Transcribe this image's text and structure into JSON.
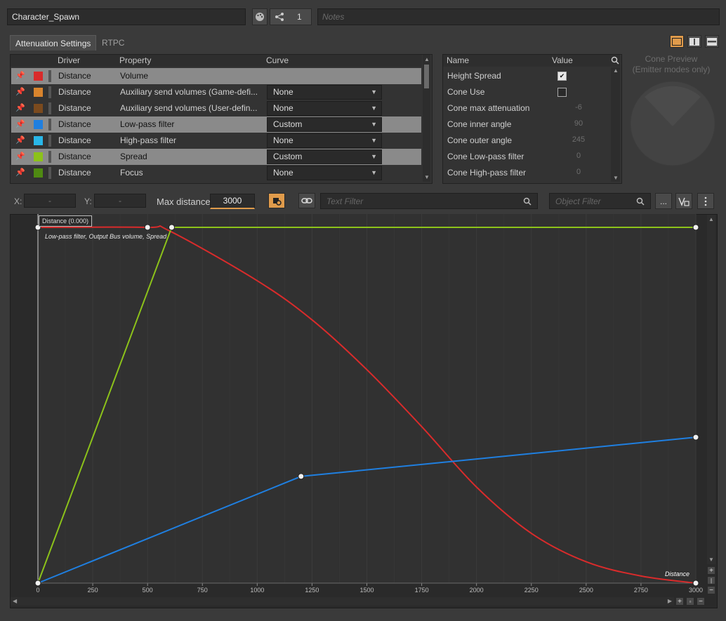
{
  "object_name": "Character_Spawn",
  "share_count": "1",
  "notes_placeholder": "Notes",
  "tabs": [
    "Attenuation Settings",
    "RTPC"
  ],
  "curves_table": {
    "headers": [
      "Driver",
      "Property",
      "Curve"
    ],
    "rows": [
      {
        "driver": "Distance",
        "property": "Volume",
        "curve": "",
        "color": "#d92b2b",
        "selected": true
      },
      {
        "driver": "Distance",
        "property": "Auxiliary send volumes (Game-defi...",
        "curve": "None",
        "color": "#d8842d",
        "selected": false
      },
      {
        "driver": "Distance",
        "property": "Auxiliary send volumes (User-defin...",
        "curve": "None",
        "color": "#7b4a1e",
        "selected": false
      },
      {
        "driver": "Distance",
        "property": "Low-pass filter",
        "curve": "Custom",
        "color": "#1f7fe0",
        "selected": true
      },
      {
        "driver": "Distance",
        "property": "High-pass filter",
        "curve": "None",
        "color": "#29b7e8",
        "selected": false
      },
      {
        "driver": "Distance",
        "property": "Spread",
        "curve": "Custom",
        "color": "#8cc21a",
        "selected": true
      },
      {
        "driver": "Distance",
        "property": "Focus",
        "curve": "None",
        "color": "#4f8a12",
        "selected": false
      }
    ]
  },
  "props_table": {
    "headers": [
      "Name",
      "Value"
    ],
    "rows": [
      {
        "name": "Height Spread",
        "value": "checked"
      },
      {
        "name": "Cone Use",
        "value": "unchecked"
      },
      {
        "name": "Cone max attenuation",
        "value": "-6"
      },
      {
        "name": "Cone inner angle",
        "value": "90"
      },
      {
        "name": "Cone outer angle",
        "value": "245"
      },
      {
        "name": "Cone Low-pass filter",
        "value": "0"
      },
      {
        "name": "Cone High-pass filter",
        "value": "0"
      }
    ]
  },
  "cone_preview": {
    "line1": "Cone Preview",
    "line2": "(Emitter modes only)"
  },
  "graph_toolbar": {
    "x_label": "X:",
    "x_value": "-",
    "y_label": "Y:",
    "y_value": "-",
    "max_distance_label": "Max distance",
    "max_distance_value": "3000",
    "text_filter_placeholder": "Text Filter",
    "object_filter_placeholder": "Object Filter",
    "more_label": "..."
  },
  "graph": {
    "cursor_label": "Distance (0.000)",
    "legend_text": "Low-pass filter, Output Bus volume, Spread",
    "axis_name": "Distance",
    "x_ticks": [
      "0",
      "250",
      "500",
      "750",
      "1000",
      "1250",
      "1500",
      "1750",
      "2000",
      "2250",
      "2500",
      "2750",
      "3000"
    ]
  },
  "chart_data": {
    "type": "line",
    "xlabel": "Distance",
    "xlim": [
      0,
      3000
    ],
    "ylim": [
      0,
      1
    ],
    "x_ticks": [
      0,
      250,
      500,
      750,
      1000,
      1250,
      1500,
      1750,
      2000,
      2250,
      2500,
      2750,
      3000
    ],
    "series": [
      {
        "name": "Volume",
        "color": "#d92b2b",
        "shape": "smooth",
        "points": [
          [
            0,
            1
          ],
          [
            500,
            1
          ],
          [
            600,
            0.99
          ],
          [
            1000,
            0.85
          ],
          [
            1250,
            0.74
          ],
          [
            1500,
            0.6
          ],
          [
            1750,
            0.44
          ],
          [
            2000,
            0.27
          ],
          [
            2250,
            0.14
          ],
          [
            2500,
            0.06
          ],
          [
            2750,
            0.02
          ],
          [
            3000,
            0
          ]
        ],
        "controls": [
          [
            0,
            1
          ],
          [
            500,
            1
          ],
          [
            3000,
            0
          ]
        ]
      },
      {
        "name": "Low-pass filter",
        "color": "#1f7fe0",
        "shape": "linear",
        "points": [
          [
            0,
            0
          ],
          [
            1200,
            0.3
          ],
          [
            3000,
            0.41
          ]
        ],
        "controls": [
          [
            0,
            0
          ],
          [
            1200,
            0.3
          ],
          [
            3000,
            0.41
          ]
        ]
      },
      {
        "name": "Spread",
        "color": "#8cc21a",
        "shape": "linear",
        "points": [
          [
            0,
            0
          ],
          [
            610,
            1
          ],
          [
            3000,
            1
          ]
        ],
        "controls": [
          [
            0,
            0
          ],
          [
            610,
            1
          ],
          [
            3000,
            1
          ]
        ]
      }
    ]
  }
}
